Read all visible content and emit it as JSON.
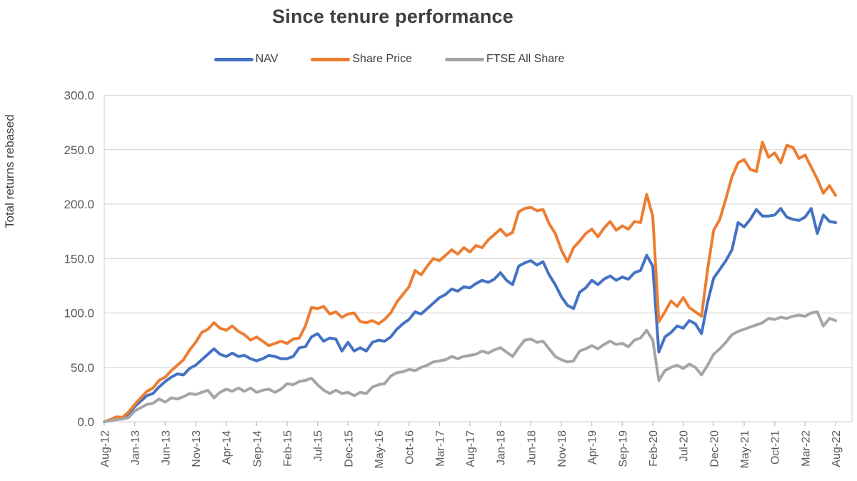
{
  "title": "Since tenure performance",
  "colors": {
    "nav": "#4472C4",
    "share_price": "#ED7D31",
    "ftse_all_share": "#A5A5A5",
    "gridline": "#D9D9D9",
    "axis_line": "#D9D9D9",
    "tick_mark": "#BFBFBF",
    "axis_text": "#595959",
    "title_text": "#3F3F3F"
  },
  "chart_data": {
    "type": "line",
    "title": "Since tenure performance",
    "ylabel": "Total returns rebased",
    "xlabel": "",
    "ylim": [
      0,
      300
    ],
    "y_tick_step": 50,
    "y_tick_labels": [
      "0.0",
      "50.0",
      "100.0",
      "150.0",
      "200.0",
      "250.0",
      "300.0"
    ],
    "x_tick_labels": [
      "Aug-12",
      "Jan-13",
      "Jun-13",
      "Nov-13",
      "Apr-14",
      "Sep-14",
      "Feb-15",
      "Jul-15",
      "Dec-15",
      "May-16",
      "Oct-16",
      "Mar-17",
      "Aug-17",
      "Jan-18",
      "Jun-18",
      "Nov-18",
      "Apr-19",
      "Sep-19",
      "Feb-20",
      "Jul-20",
      "Dec-20",
      "May-21",
      "Oct-21",
      "Mar-22",
      "Aug-22"
    ],
    "x_tick_interval_months": 5,
    "frequency": "monthly",
    "x_start": "Aug-12",
    "x_end": "Aug-22",
    "n_points": 121,
    "grid": true,
    "legend_position": "top",
    "series": [
      {
        "name": "NAV",
        "color": "#4472C4",
        "values": [
          0,
          1.5,
          3.5,
          3,
          7,
          14,
          19,
          24,
          26,
          32,
          37,
          41,
          44,
          43,
          49,
          52,
          57,
          62,
          67,
          62,
          60,
          63,
          60,
          61,
          58,
          56,
          58,
          61,
          60,
          58,
          58,
          60,
          68,
          69,
          78,
          81,
          74,
          77,
          76,
          65,
          73,
          65,
          68,
          65,
          73,
          75,
          74,
          78,
          85,
          90,
          94,
          101,
          99,
          104,
          109,
          114,
          117,
          122,
          120,
          124,
          123,
          127,
          130,
          128,
          131,
          137,
          130,
          126,
          143,
          146,
          148,
          144,
          147,
          135,
          126,
          115,
          107,
          104,
          119,
          123,
          130,
          126,
          131,
          134,
          130,
          133,
          131,
          137,
          139,
          153,
          143,
          64,
          78,
          82,
          88,
          86,
          93,
          90,
          81,
          110,
          132,
          140,
          148,
          158,
          183,
          179,
          186,
          195,
          189,
          189,
          190,
          196,
          188,
          186,
          185,
          188,
          196,
          173,
          190,
          184,
          183
        ]
      },
      {
        "name": "Share Price",
        "color": "#ED7D31",
        "values": [
          0,
          2,
          4.5,
          4,
          9,
          16,
          22,
          28,
          31,
          38,
          41,
          47,
          52,
          57,
          66,
          73,
          82,
          85,
          91,
          86,
          84,
          88,
          83,
          80,
          75,
          78,
          74,
          70,
          72,
          74,
          72,
          76,
          77,
          88,
          105,
          104,
          106,
          99,
          101,
          96,
          99,
          100,
          92,
          91,
          93,
          90,
          94,
          100,
          110,
          117,
          124,
          139,
          135,
          143,
          150,
          148,
          153,
          158,
          154,
          160,
          156,
          162,
          160,
          167,
          172,
          177,
          171,
          174,
          193,
          196,
          197,
          194,
          195,
          182,
          173,
          158,
          147,
          160,
          166,
          173,
          177,
          170,
          178,
          184,
          176,
          180,
          177,
          184,
          183,
          209,
          189,
          92,
          101,
          111,
          106,
          114,
          105,
          101,
          97,
          140,
          176,
          186,
          205,
          225,
          238,
          241,
          232,
          230,
          257,
          243,
          247,
          238,
          254,
          252,
          242,
          245,
          234,
          223,
          210,
          217,
          208
        ]
      },
      {
        "name": "FTSE All Share",
        "color": "#A5A5A5",
        "values": [
          0,
          1,
          2,
          2.5,
          4,
          10,
          13,
          16,
          17,
          21,
          18,
          22,
          21,
          23,
          26,
          25,
          27,
          29,
          22,
          27,
          30,
          28,
          31,
          28,
          31,
          27,
          29,
          30,
          27,
          30,
          35,
          34,
          37,
          38,
          40,
          34,
          29,
          26,
          29,
          26,
          27,
          24,
          27,
          26,
          32,
          34,
          35,
          42,
          45,
          46,
          48,
          47,
          50,
          52,
          55,
          56,
          57,
          60,
          58,
          60,
          61,
          62,
          65,
          63,
          66,
          68,
          64,
          60,
          68,
          75,
          76,
          73,
          74,
          67,
          60,
          57,
          55,
          56,
          65,
          67,
          70,
          67,
          71,
          74,
          71,
          72,
          69,
          75,
          77,
          84,
          75,
          38,
          47,
          50,
          52,
          49,
          53,
          50,
          43,
          52,
          62,
          67,
          73,
          80,
          83,
          85,
          87,
          89,
          91,
          95,
          94,
          96,
          95,
          97,
          98,
          97,
          100,
          101,
          88,
          95,
          93
        ]
      }
    ]
  }
}
